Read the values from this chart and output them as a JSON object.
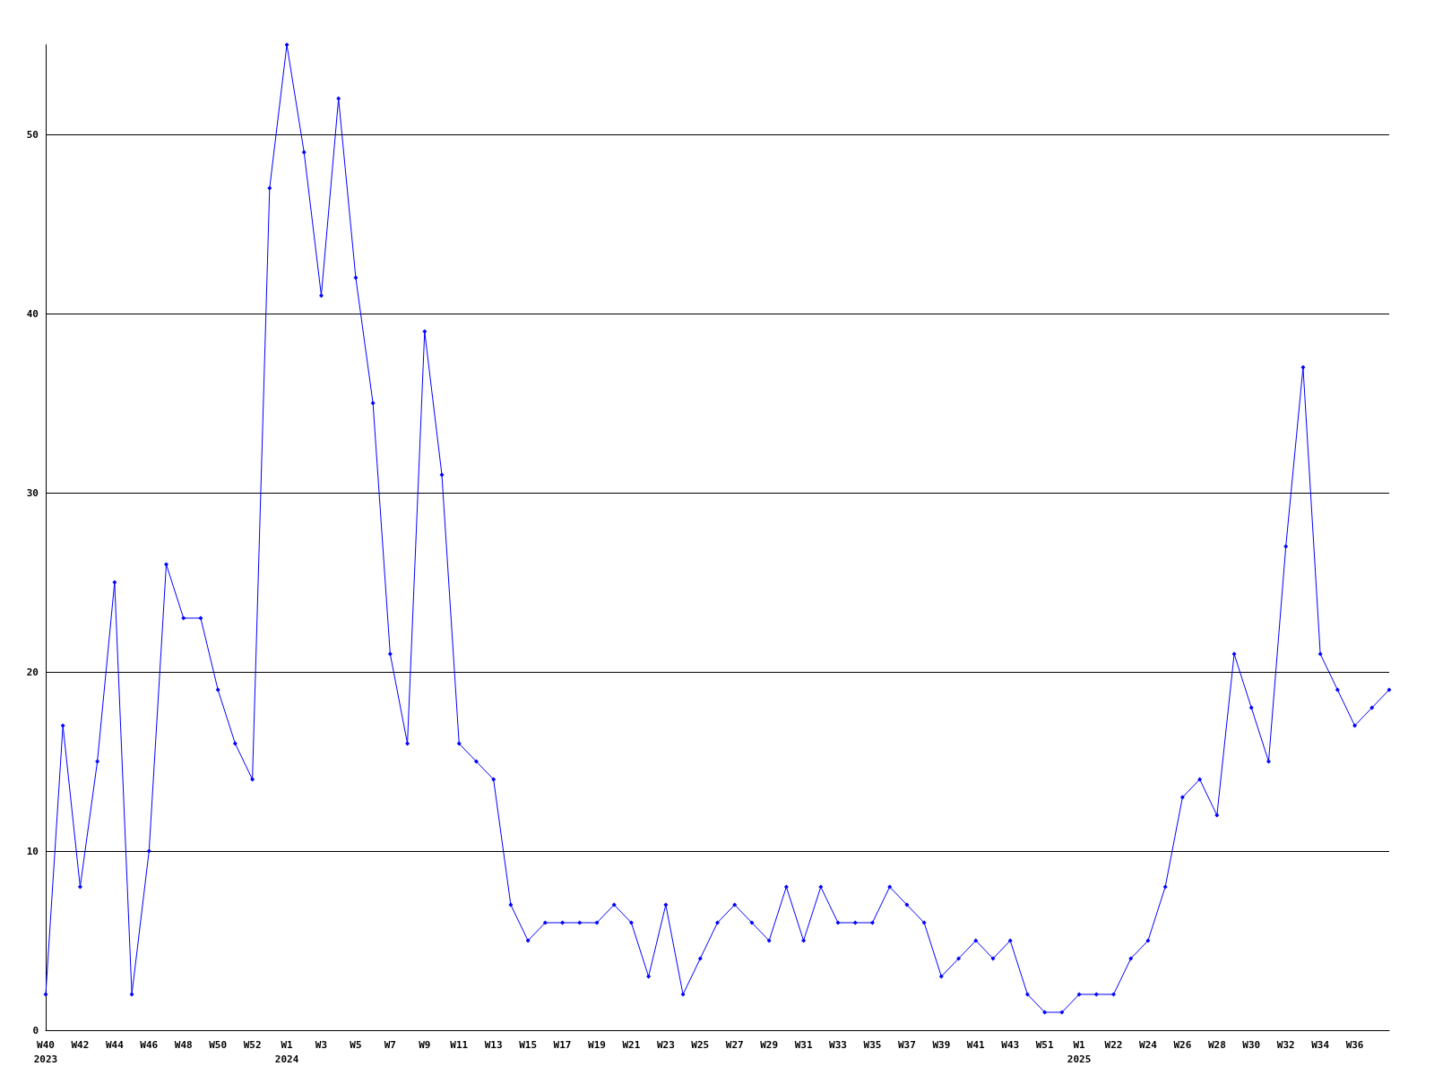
{
  "chart_data": {
    "type": "line",
    "categories": [
      "W40\n2023",
      null,
      "W42",
      null,
      "W44",
      null,
      "W46",
      null,
      "W48",
      null,
      "W50",
      null,
      "W52",
      null,
      "W1\n2024",
      null,
      "W3",
      null,
      "W5",
      null,
      "W7",
      null,
      "W9",
      null,
      "W11",
      null,
      "W13",
      null,
      "W15",
      null,
      "W17",
      null,
      "W19",
      null,
      "W21",
      null,
      "W23",
      null,
      "W25",
      null,
      "W27",
      null,
      "W29",
      null,
      "W31",
      null,
      "W33",
      null,
      "W35",
      null,
      "W37",
      null,
      "W39",
      null,
      "W41",
      null,
      "W43",
      null,
      "W51",
      null,
      "W1\n2025",
      null,
      "W22",
      null,
      "W24",
      null,
      "W26",
      null,
      "W28",
      null,
      "W30",
      null,
      "W32",
      null,
      "W34",
      null,
      "W36",
      null,
      null
    ],
    "series": [
      {
        "color": "#0000ff",
        "values": [
          2,
          17,
          8,
          15,
          25,
          2,
          10,
          26,
          23,
          23,
          19,
          16,
          14,
          47,
          55,
          49,
          41,
          52,
          42,
          35,
          21,
          16,
          39,
          31,
          16,
          15,
          14,
          7,
          5,
          6,
          6,
          6,
          6,
          7,
          6,
          3,
          7,
          2,
          4,
          6,
          7,
          6,
          5,
          8,
          5,
          8,
          6,
          6,
          6,
          8,
          7,
          6,
          3,
          4,
          5,
          4,
          5,
          2,
          1,
          1,
          2,
          2,
          2,
          4,
          5,
          8,
          13,
          14,
          12,
          21,
          18,
          15,
          27,
          37,
          21,
          19,
          17,
          18,
          19
        ]
      }
    ],
    "ylim": [
      0,
      55
    ],
    "yticks": [
      0,
      10,
      20,
      30,
      40,
      50
    ],
    "grid": "y",
    "marker": "diamond",
    "line_style": "solid"
  }
}
